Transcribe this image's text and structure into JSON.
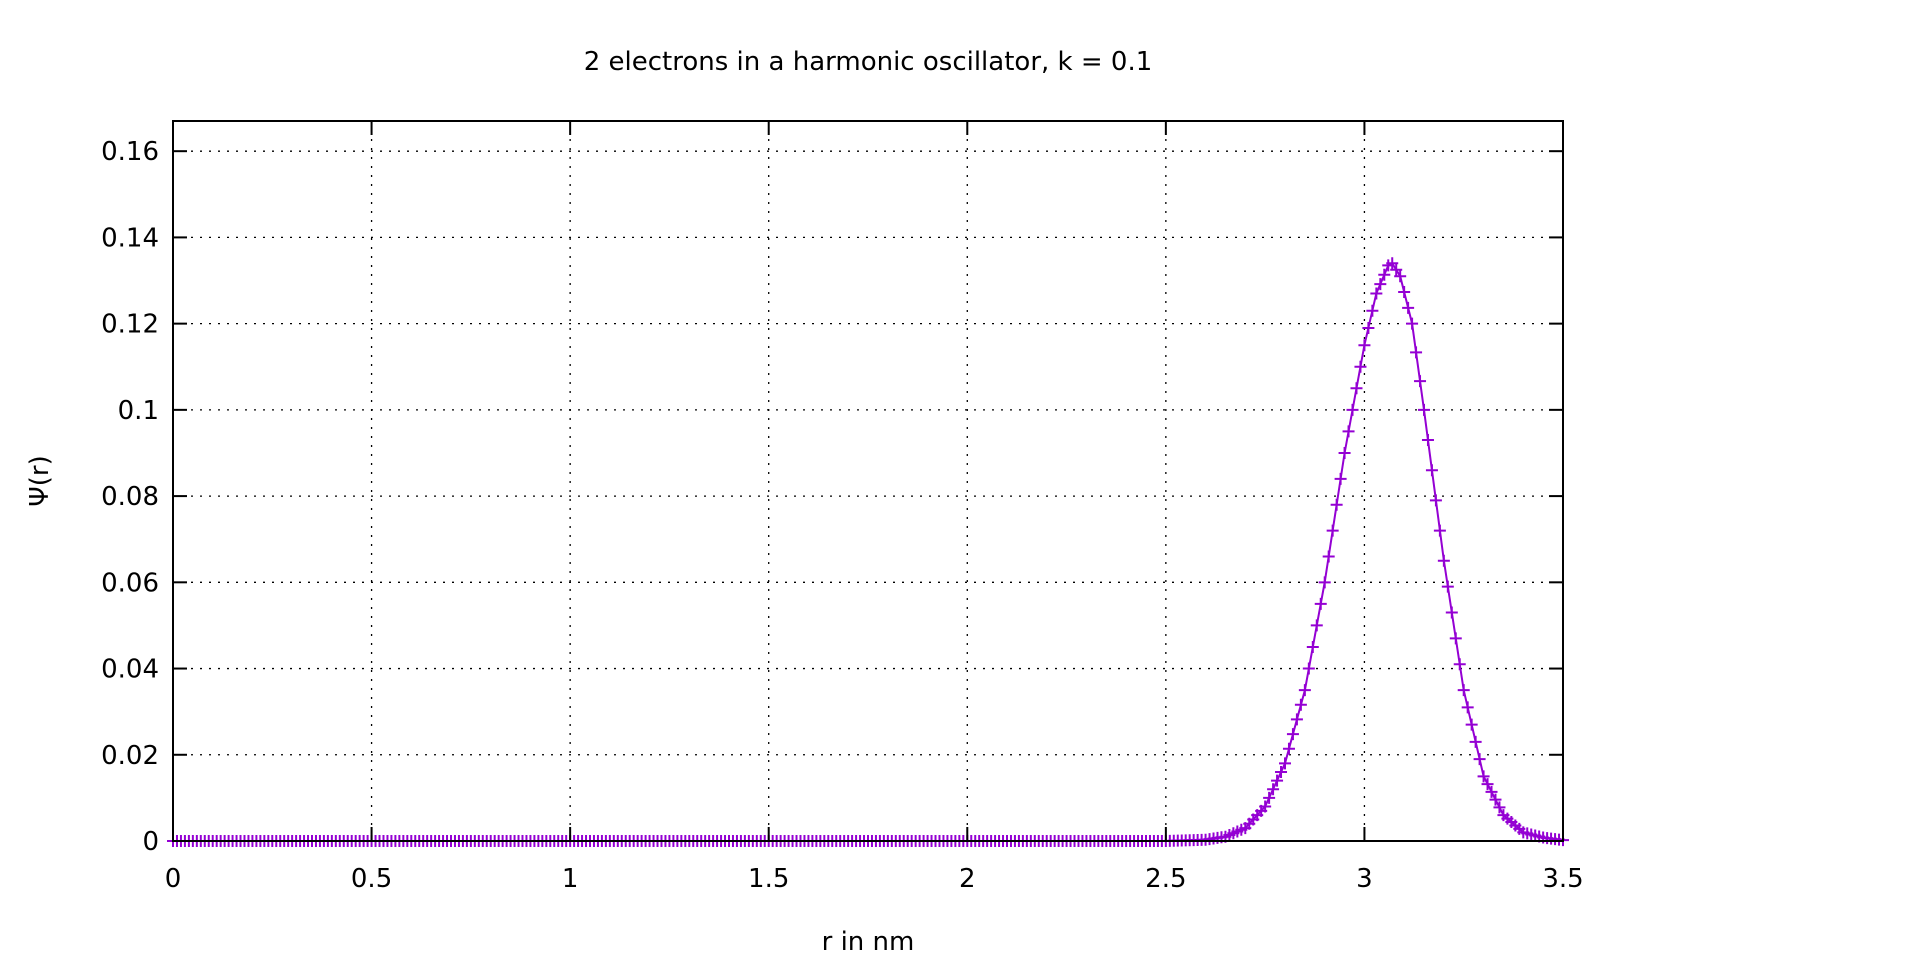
{
  "chart_data": {
    "type": "scatter",
    "title": "2 electrons in a harmonic oscillator, k = 0.1",
    "xlabel": "r in nm",
    "ylabel": "Ψ(r)",
    "xlim": [
      0,
      3.5
    ],
    "ylim": [
      0,
      0.167
    ],
    "xticks": [
      "0",
      "0.5",
      "1",
      "1.5",
      "2",
      "2.5",
      "3",
      "3.5"
    ],
    "xtick_values": [
      0,
      0.5,
      1,
      1.5,
      2,
      2.5,
      3,
      3.5
    ],
    "yticks": [
      "0",
      "0.02",
      "0.04",
      "0.06",
      "0.08",
      "0.1",
      "0.12",
      "0.14",
      "0.16"
    ],
    "ytick_values": [
      0,
      0.02,
      0.04,
      0.06,
      0.08,
      0.1,
      0.12,
      0.14,
      0.16
    ],
    "grid": true,
    "marker": "plus",
    "color": "#9400d3",
    "series": [
      {
        "x": [
          0,
          0.5,
          1.0,
          1.5,
          2.0,
          2.5,
          2.6,
          2.65,
          2.7,
          2.75,
          2.8,
          2.85,
          2.9,
          2.95,
          3.0,
          3.03,
          3.06,
          3.07,
          3.09,
          3.12,
          3.15,
          3.2,
          3.25,
          3.3,
          3.35,
          3.4,
          3.45,
          3.5
        ],
        "y": [
          0,
          0,
          0,
          0,
          0,
          0,
          0.0003,
          0.001,
          0.003,
          0.008,
          0.018,
          0.035,
          0.06,
          0.09,
          0.115,
          0.127,
          0.1335,
          0.134,
          0.131,
          0.12,
          0.1,
          0.065,
          0.035,
          0.015,
          0.006,
          0.002,
          0.0008,
          0.0002
        ]
      }
    ]
  }
}
